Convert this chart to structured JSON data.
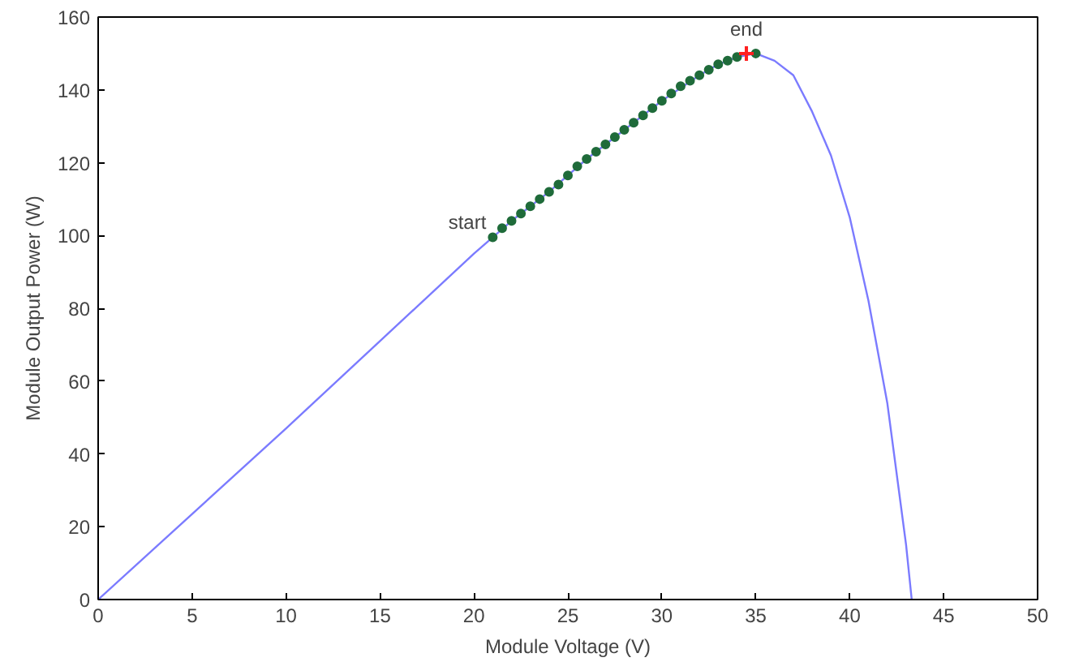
{
  "chart_data": {
    "type": "line",
    "xlabel": "Module Voltage (V)",
    "ylabel": "Module Output Power (W)",
    "xlim": [
      0,
      50
    ],
    "ylim": [
      0,
      160
    ],
    "xticks": [
      0,
      5,
      10,
      15,
      20,
      25,
      30,
      35,
      40,
      45,
      50
    ],
    "yticks": [
      0,
      20,
      40,
      60,
      80,
      100,
      120,
      140,
      160
    ],
    "grid": false,
    "series": [
      {
        "color": "#7b7bff",
        "marker": "none",
        "x": [
          0,
          5,
          10,
          15,
          20,
          22,
          24,
          26,
          28,
          30,
          32,
          33,
          34,
          35,
          36,
          37,
          38,
          39,
          40,
          41,
          42,
          43,
          43.3
        ],
        "values": [
          0,
          23.5,
          47,
          71,
          95,
          104,
          112,
          121,
          129,
          137,
          144,
          147,
          149,
          150,
          148,
          144,
          134,
          122,
          105,
          82,
          54,
          15,
          0
        ]
      },
      {
        "type": "scatter",
        "color": "#1f6b3a",
        "marker": "circle",
        "x": [
          21,
          21.5,
          22,
          22.5,
          23,
          23.5,
          24,
          24.5,
          25,
          25.5,
          26,
          26.5,
          27,
          27.5,
          28,
          28.5,
          29,
          29.5,
          30,
          30.5,
          31,
          31.5,
          32,
          32.5,
          33,
          33.5,
          34,
          34.5,
          35
        ],
        "values": [
          99.5,
          102,
          104,
          106,
          108,
          110,
          112,
          114,
          116.5,
          119,
          121,
          123,
          125,
          127,
          129,
          131,
          133,
          135,
          137,
          139,
          141,
          142.5,
          144,
          145.5,
          147,
          148,
          149,
          null,
          150
        ]
      },
      {
        "type": "scatter",
        "color": "#ff2020",
        "marker": "cross",
        "x": [
          34.5
        ],
        "values": [
          150
        ]
      }
    ],
    "annotations": [
      {
        "text": "start",
        "x": 21,
        "y": 99.5
      },
      {
        "text": "end",
        "x": 34.5,
        "y": 150
      }
    ]
  }
}
